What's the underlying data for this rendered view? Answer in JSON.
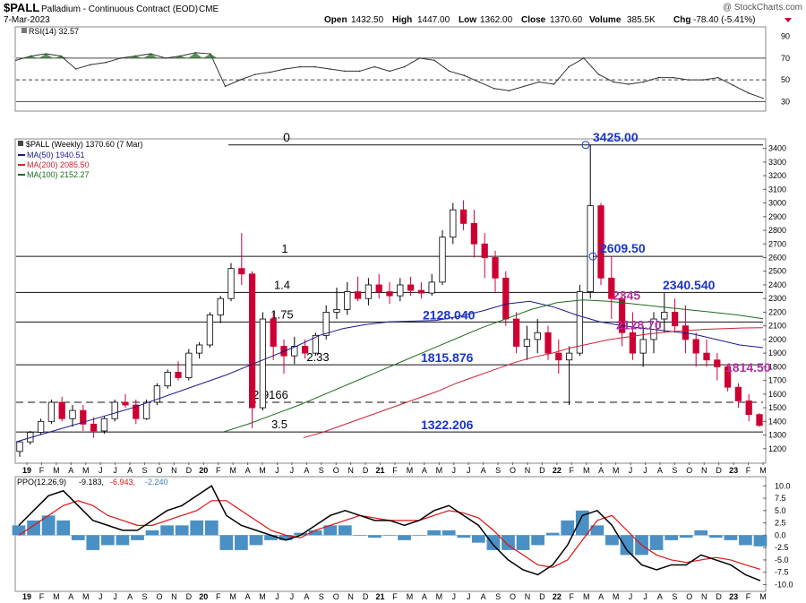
{
  "header": {
    "symbol": "$PALL",
    "name": "Palladium - Continuous Contract (EOD)",
    "exchange": "CME",
    "date": "7-Mar-2023",
    "watermark": "@ StockCharts.com",
    "open_label": "Open",
    "open": "1432.50",
    "high_label": "High",
    "high": "1447.00",
    "low_label": "Low",
    "low": "1362.00",
    "close_label": "Close",
    "close": "1370.60",
    "volume_label": "Volume",
    "volume": "385.5K",
    "chg_label": "Chg",
    "chg": "-78.40 (-5.41%)"
  },
  "colors": {
    "up_candle": "#000000",
    "down_candle": "#cc0033",
    "ma50": "#1a1a8c",
    "ma200": "#cc2233",
    "ma100": "#1f6b1f",
    "rsi_line": "#333333",
    "rsi_fill": "#3a7a3a",
    "ppo_line": "#000000",
    "ppo_signal": "#dd1111",
    "ppo_hist": "#4a90c4",
    "blue_annotation": "#1a35c8",
    "magenta_annotation": "#b030a0"
  },
  "chart_data": [
    {
      "id": "rsi",
      "type": "line",
      "legend": "RSI(14) 32.57",
      "y_ticks": [
        30,
        50,
        70,
        90
      ],
      "ylim": [
        22,
        98
      ],
      "levels": [
        30,
        50,
        70
      ],
      "x": [
        "2019-01",
        "2019-02",
        "2019-03",
        "2019-04",
        "2019-05",
        "2019-06",
        "2019-07",
        "2019-08",
        "2019-09",
        "2019-10",
        "2019-11",
        "2019-12",
        "2020-01",
        "2020-02",
        "2020-03",
        "2020-04",
        "2020-05",
        "2020-06",
        "2020-07",
        "2020-08",
        "2020-09",
        "2020-10",
        "2020-11",
        "2020-12",
        "2021-01",
        "2021-02",
        "2021-03",
        "2021-04",
        "2021-05",
        "2021-06",
        "2021-07",
        "2021-08",
        "2021-09",
        "2021-10",
        "2021-11",
        "2021-12",
        "2022-01",
        "2022-02",
        "2022-03",
        "2022-04",
        "2022-05",
        "2022-06",
        "2022-07",
        "2022-08",
        "2022-09",
        "2022-10",
        "2022-11",
        "2022-12",
        "2023-01",
        "2023-02",
        "2023-03"
      ],
      "values": [
        68,
        72,
        74,
        72,
        60,
        64,
        66,
        70,
        72,
        74,
        70,
        72,
        75,
        74,
        44,
        50,
        55,
        57,
        60,
        62,
        62,
        60,
        58,
        58,
        62,
        58,
        62,
        70,
        68,
        58,
        54,
        48,
        42,
        40,
        44,
        48,
        46,
        62,
        70,
        55,
        48,
        46,
        48,
        52,
        52,
        50,
        50,
        52,
        45,
        38,
        33
      ]
    },
    {
      "id": "price",
      "type": "candlestick",
      "legend": "$PALL (Weekly) 1370.60 (7 Mar)",
      "series_legends": [
        "MA(50) 1940.51",
        "MA(200) 2085.50",
        "MA(100) 2152.27"
      ],
      "x_ticks": [
        "19",
        "F",
        "M",
        "A",
        "M",
        "J",
        "J",
        "A",
        "S",
        "O",
        "N",
        "D",
        "20",
        "F",
        "M",
        "A",
        "M",
        "J",
        "J",
        "A",
        "S",
        "O",
        "N",
        "D",
        "21",
        "F",
        "M",
        "A",
        "M",
        "J",
        "J",
        "A",
        "S",
        "O",
        "N",
        "D",
        "22",
        "F",
        "M",
        "A",
        "M",
        "J",
        "J",
        "A",
        "S",
        "O",
        "N",
        "D",
        "23",
        "F",
        "M"
      ],
      "y_ticks": [
        1200,
        1300,
        1400,
        1500,
        1600,
        1700,
        1800,
        1900,
        2000,
        2100,
        2200,
        2300,
        2400,
        2500,
        2600,
        2700,
        2800,
        2900,
        3000,
        3100,
        3200,
        3300,
        3400
      ],
      "ylim": [
        1100,
        3450
      ],
      "candles": [
        {
          "o": 1180,
          "h": 1260,
          "l": 1140,
          "c": 1250
        },
        {
          "o": 1250,
          "h": 1330,
          "l": 1230,
          "c": 1320
        },
        {
          "o": 1320,
          "h": 1420,
          "l": 1300,
          "c": 1400
        },
        {
          "o": 1400,
          "h": 1560,
          "l": 1380,
          "c": 1540
        },
        {
          "o": 1540,
          "h": 1580,
          "l": 1400,
          "c": 1420
        },
        {
          "o": 1420,
          "h": 1520,
          "l": 1360,
          "c": 1480
        },
        {
          "o": 1480,
          "h": 1520,
          "l": 1330,
          "c": 1380
        },
        {
          "o": 1380,
          "h": 1430,
          "l": 1280,
          "c": 1330
        },
        {
          "o": 1330,
          "h": 1440,
          "l": 1310,
          "c": 1420
        },
        {
          "o": 1420,
          "h": 1560,
          "l": 1400,
          "c": 1540
        },
        {
          "o": 1540,
          "h": 1600,
          "l": 1500,
          "c": 1520
        },
        {
          "o": 1520,
          "h": 1560,
          "l": 1380,
          "c": 1420
        },
        {
          "o": 1420,
          "h": 1560,
          "l": 1410,
          "c": 1540
        },
        {
          "o": 1540,
          "h": 1680,
          "l": 1520,
          "c": 1660
        },
        {
          "o": 1660,
          "h": 1780,
          "l": 1640,
          "c": 1760
        },
        {
          "o": 1760,
          "h": 1840,
          "l": 1700,
          "c": 1720
        },
        {
          "o": 1720,
          "h": 1930,
          "l": 1700,
          "c": 1900
        },
        {
          "o": 1900,
          "h": 1980,
          "l": 1860,
          "c": 1960
        },
        {
          "o": 1960,
          "h": 2200,
          "l": 1940,
          "c": 2180
        },
        {
          "o": 2180,
          "h": 2320,
          "l": 2120,
          "c": 2300
        },
        {
          "o": 2300,
          "h": 2560,
          "l": 2280,
          "c": 2520
        },
        {
          "o": 2520,
          "h": 2780,
          "l": 2400,
          "c": 2480
        },
        {
          "o": 2480,
          "h": 2500,
          "l": 1350,
          "c": 1500
        },
        {
          "o": 1500,
          "h": 2200,
          "l": 1480,
          "c": 2150
        },
        {
          "o": 2150,
          "h": 2200,
          "l": 1850,
          "c": 1950
        },
        {
          "o": 1950,
          "h": 2000,
          "l": 1750,
          "c": 1880
        },
        {
          "o": 1880,
          "h": 2020,
          "l": 1820,
          "c": 1950
        },
        {
          "o": 1950,
          "h": 2000,
          "l": 1860,
          "c": 1900
        },
        {
          "o": 1900,
          "h": 2050,
          "l": 1880,
          "c": 2030
        },
        {
          "o": 2030,
          "h": 2250,
          "l": 2000,
          "c": 2200
        },
        {
          "o": 2200,
          "h": 2380,
          "l": 2150,
          "c": 2220
        },
        {
          "o": 2220,
          "h": 2420,
          "l": 2180,
          "c": 2350
        },
        {
          "o": 2350,
          "h": 2460,
          "l": 2280,
          "c": 2300
        },
        {
          "o": 2300,
          "h": 2450,
          "l": 2250,
          "c": 2400
        },
        {
          "o": 2400,
          "h": 2480,
          "l": 2300,
          "c": 2350
        },
        {
          "o": 2350,
          "h": 2420,
          "l": 2260,
          "c": 2320
        },
        {
          "o": 2320,
          "h": 2450,
          "l": 2280,
          "c": 2400
        },
        {
          "o": 2400,
          "h": 2460,
          "l": 2320,
          "c": 2360
        },
        {
          "o": 2360,
          "h": 2420,
          "l": 2300,
          "c": 2340
        },
        {
          "o": 2340,
          "h": 2480,
          "l": 2320,
          "c": 2420
        },
        {
          "o": 2420,
          "h": 2800,
          "l": 2400,
          "c": 2750
        },
        {
          "o": 2750,
          "h": 3000,
          "l": 2700,
          "c": 2950
        },
        {
          "o": 2950,
          "h": 3020,
          "l": 2800,
          "c": 2850
        },
        {
          "o": 2850,
          "h": 2950,
          "l": 2600,
          "c": 2700
        },
        {
          "o": 2700,
          "h": 2780,
          "l": 2450,
          "c": 2600
        },
        {
          "o": 2600,
          "h": 2650,
          "l": 2350,
          "c": 2450
        },
        {
          "o": 2450,
          "h": 2500,
          "l": 2100,
          "c": 2150
        },
        {
          "o": 2150,
          "h": 2200,
          "l": 1900,
          "c": 1950
        },
        {
          "o": 1950,
          "h": 2100,
          "l": 1850,
          "c": 2000
        },
        {
          "o": 2000,
          "h": 2150,
          "l": 1900,
          "c": 2050
        },
        {
          "o": 2050,
          "h": 2100,
          "l": 1850,
          "c": 1900
        },
        {
          "o": 1900,
          "h": 2000,
          "l": 1750,
          "c": 1850
        },
        {
          "o": 1850,
          "h": 1950,
          "l": 1520,
          "c": 1900
        },
        {
          "o": 1900,
          "h": 2400,
          "l": 1880,
          "c": 2350
        },
        {
          "o": 2350,
          "h": 3425,
          "l": 2300,
          "c": 2980
        },
        {
          "o": 2980,
          "h": 3000,
          "l": 2400,
          "c": 2450
        },
        {
          "o": 2450,
          "h": 2609,
          "l": 2150,
          "c": 2300
        },
        {
          "o": 2300,
          "h": 2345,
          "l": 1950,
          "c": 2050
        },
        {
          "o": 2050,
          "h": 2200,
          "l": 1850,
          "c": 1900
        },
        {
          "o": 1900,
          "h": 2100,
          "l": 1800,
          "c": 2000
        },
        {
          "o": 2000,
          "h": 2200,
          "l": 1900,
          "c": 2150
        },
        {
          "o": 2150,
          "h": 2340,
          "l": 2050,
          "c": 2200
        },
        {
          "o": 2200,
          "h": 2300,
          "l": 2050,
          "c": 2100
        },
        {
          "o": 2100,
          "h": 2250,
          "l": 1900,
          "c": 2000
        },
        {
          "o": 2000,
          "h": 2050,
          "l": 1800,
          "c": 1900
        },
        {
          "o": 1900,
          "h": 2000,
          "l": 1800,
          "c": 1850
        },
        {
          "o": 1850,
          "h": 1900,
          "l": 1700,
          "c": 1800
        },
        {
          "o": 1800,
          "h": 1814,
          "l": 1620,
          "c": 1650
        },
        {
          "o": 1650,
          "h": 1680,
          "l": 1500,
          "c": 1550
        },
        {
          "o": 1550,
          "h": 1600,
          "l": 1400,
          "c": 1450
        },
        {
          "o": 1450,
          "h": 1460,
          "l": 1360,
          "c": 1370
        }
      ],
      "ma50": [
        1250,
        1300,
        1350,
        1400,
        1450,
        1500,
        1560,
        1620,
        1680,
        1740,
        1810,
        1880,
        1950,
        2030,
        2080,
        2110,
        2130,
        2135,
        2140,
        2170,
        2210,
        2260,
        2280,
        2240,
        2180,
        2130,
        2100,
        2080,
        2060,
        2040,
        2000,
        1960,
        1940
      ],
      "ma200": [
        null,
        null,
        null,
        null,
        null,
        null,
        null,
        null,
        null,
        null,
        null,
        null,
        null,
        null,
        null,
        1280,
        1320,
        1370,
        1420,
        1470,
        1520,
        1570,
        1620,
        1680,
        1730,
        1780,
        1830,
        1870,
        1900,
        1940,
        1970,
        2000,
        2020,
        2040,
        2055,
        2065,
        2075,
        2080,
        2085,
        2086
      ],
      "ma100": [
        null,
        null,
        null,
        null,
        null,
        null,
        null,
        null,
        1320,
        1380,
        1450,
        1520,
        1600,
        1680,
        1760,
        1840,
        1920,
        2000,
        2080,
        2150,
        2220,
        2270,
        2290,
        2280,
        2260,
        2240,
        2220,
        2200,
        2180,
        2152
      ],
      "horizontal_levels": [
        {
          "value": 3425,
          "label": "0"
        },
        {
          "value": 2609,
          "label": "1"
        },
        {
          "value": 2345,
          "label": "1.4"
        },
        {
          "value": 2128,
          "label": "1.75"
        },
        {
          "value": 1815,
          "label": "2.33"
        },
        {
          "value": 1540,
          "label": "2.9166",
          "dashed": true
        },
        {
          "value": 1322,
          "label": "3.5"
        }
      ],
      "annotations_blue": [
        "3425.00",
        "2609.50",
        "2340.540",
        "2128.040",
        "1815.876",
        "1322.206"
      ],
      "annotations_magenta": [
        "2345",
        "2128.70",
        "1814.50"
      ]
    },
    {
      "id": "ppo",
      "type": "line",
      "legend_main": "PPO(12,26,9)",
      "legend_ppo": "-9.183,",
      "legend_signal": "-6.943,",
      "legend_hist": "-2.240",
      "y_ticks": [
        10.0,
        7.5,
        5.0,
        2.5,
        0.0,
        -2.5,
        -5.0,
        -7.5,
        -10.0
      ],
      "y_tick_labels": [
        "10.0",
        "7.5",
        "5.0",
        "2.5",
        "0.0",
        "-2.5",
        "-5.0",
        "-7.5",
        "-10.0"
      ],
      "ylim": [
        -11,
        11.5
      ],
      "ppo": [
        2,
        5,
        8,
        9,
        6,
        3,
        2,
        1,
        1,
        3,
        5,
        6,
        8,
        10,
        4,
        2,
        1,
        0,
        -1,
        0,
        2,
        4,
        5,
        4,
        3,
        3,
        2,
        3,
        5,
        6,
        4,
        2,
        -2,
        -5,
        -7,
        -8,
        -6,
        -2,
        4,
        5,
        2,
        -3,
        -6,
        -7,
        -6,
        -6,
        -4,
        -5,
        -6,
        -8,
        -9.2
      ],
      "signal": [
        0,
        2,
        4,
        6,
        7,
        6,
        4,
        3,
        2,
        2,
        3,
        4,
        5,
        7,
        7,
        5,
        3,
        1,
        0,
        -0.5,
        1,
        2,
        3,
        4,
        3.5,
        3,
        3,
        3,
        4,
        5,
        4.5,
        3.5,
        1,
        -2,
        -4,
        -6,
        -6.5,
        -5,
        -1,
        3,
        4,
        1,
        -2,
        -4,
        -5,
        -5.5,
        -5,
        -4.5,
        -5,
        -6,
        -6.9
      ],
      "hist": [
        2,
        3,
        4,
        3,
        -1,
        -3,
        -2,
        -2,
        -1,
        1,
        2,
        2,
        3,
        3,
        -3,
        -3,
        -2,
        -1,
        -1,
        0.5,
        1,
        2,
        2,
        0,
        -0.5,
        0,
        -1,
        0,
        1,
        1,
        -0.5,
        -1.5,
        -3,
        -3,
        -3,
        -2,
        0.5,
        3,
        5,
        2,
        -2,
        -4,
        -4,
        -3,
        -1,
        -0.5,
        1,
        -0.5,
        -1,
        -2,
        -2.24
      ],
      "x_ticks": [
        "19",
        "F",
        "M",
        "A",
        "M",
        "J",
        "J",
        "A",
        "S",
        "O",
        "N",
        "D",
        "20",
        "F",
        "M",
        "A",
        "M",
        "J",
        "J",
        "A",
        "S",
        "O",
        "N",
        "D",
        "21",
        "F",
        "M",
        "A",
        "M",
        "J",
        "J",
        "A",
        "S",
        "O",
        "N",
        "D",
        "22",
        "F",
        "M",
        "A",
        "M",
        "J",
        "J",
        "A",
        "S",
        "O",
        "N",
        "D",
        "23",
        "F",
        "M"
      ]
    }
  ]
}
